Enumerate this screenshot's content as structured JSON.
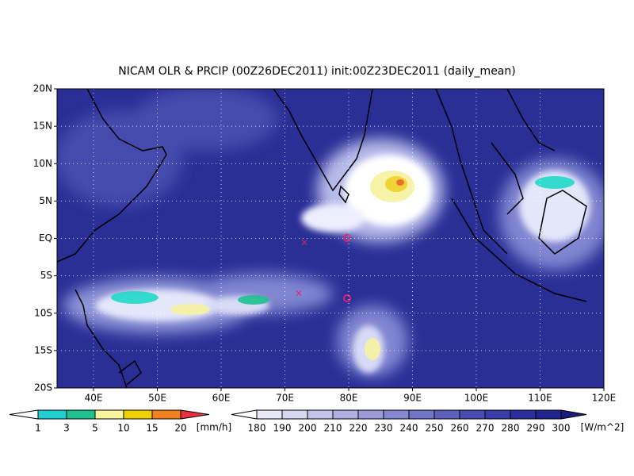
{
  "title": "NICAM OLR & PRCIP (00Z26DEC2011) init:00Z23DEC2011 (daily_mean)",
  "map": {
    "lat_labels": [
      "20N",
      "15N",
      "10N",
      "5N",
      "EQ",
      "5S",
      "10S",
      "15S",
      "20S"
    ],
    "lon_labels": [
      "40E",
      "50E",
      "60E",
      "70E",
      "80E",
      "90E",
      "100E",
      "110E",
      "120E"
    ]
  },
  "precip_colorbar": {
    "labels": [
      "1",
      "3",
      "5",
      "10",
      "15",
      "20"
    ],
    "unit": "[mm/h]"
  },
  "olr_colorbar": {
    "labels": [
      "180",
      "190",
      "200",
      "210",
      "220",
      "230",
      "240",
      "250",
      "260",
      "270",
      "280",
      "290",
      "300"
    ],
    "unit": "[W/m^2]"
  }
}
